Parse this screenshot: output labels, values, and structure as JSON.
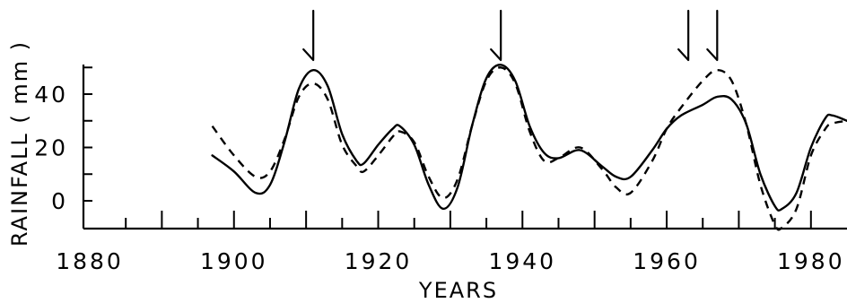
{
  "chart_data": {
    "type": "line",
    "xlabel": "YEARS",
    "ylabel": "RAINFALL ( mm )",
    "xlim": [
      1880,
      1985
    ],
    "ylim": [
      -10,
      52
    ],
    "x_ticks": [
      1880,
      1900,
      1920,
      1940,
      1960,
      1980
    ],
    "x_minor_step": 5,
    "y_ticks": [
      0,
      20,
      40
    ],
    "y_minor_step": 10,
    "grid": false,
    "legend": "none",
    "series": [
      {
        "style": "solid",
        "x": [
          1897,
          1900,
          1903,
          1905,
          1907,
          1909,
          1911,
          1913,
          1915,
          1917,
          1918,
          1920,
          1922,
          1923,
          1925,
          1927,
          1929,
          1931,
          1933,
          1935,
          1937,
          1939,
          1941,
          1943,
          1945,
          1948,
          1951,
          1953,
          1955,
          1958,
          1960,
          1962,
          1965,
          1967,
          1969,
          1971,
          1973,
          1975,
          1976,
          1978,
          1980,
          1982,
          1983,
          1985
        ],
        "y": [
          17,
          11,
          3,
          6,
          22,
          42,
          49,
          43,
          25,
          15,
          14,
          21,
          27,
          28,
          21,
          6,
          -3,
          5,
          28,
          46,
          51,
          45,
          28,
          18,
          16,
          19,
          13,
          9,
          9,
          19,
          27,
          32,
          36,
          39,
          38,
          29,
          10,
          -2,
          -3,
          3,
          20,
          31,
          32,
          30
        ]
      },
      {
        "style": "dashed",
        "x": [
          1897,
          1900,
          1903,
          1905,
          1907,
          1909,
          1911,
          1913,
          1915,
          1917,
          1918,
          1920,
          1922,
          1923,
          1925,
          1927,
          1929,
          1931,
          1933,
          1935,
          1937,
          1939,
          1941,
          1943,
          1945,
          1948,
          1951,
          1953,
          1955,
          1958,
          1960,
          1962,
          1965,
          1967,
          1969,
          1971,
          1973,
          1975,
          1976,
          1978,
          1980,
          1982,
          1983,
          1985
        ],
        "y": [
          28,
          17,
          9,
          11,
          23,
          39,
          44,
          38,
          21,
          13,
          11,
          17,
          24,
          26,
          22,
          9,
          1,
          8,
          28,
          45,
          50,
          44,
          26,
          15,
          16,
          20,
          12,
          5,
          3,
          15,
          27,
          35,
          45,
          49,
          45,
          29,
          6,
          -9,
          -10,
          -3,
          17,
          27,
          29,
          30
        ]
      }
    ],
    "annotations": [
      {
        "type": "arrow-down",
        "x": 1911
      },
      {
        "type": "arrow-down",
        "x": 1937
      },
      {
        "type": "arrow-down",
        "x": 1963
      },
      {
        "type": "arrow-down",
        "x": 1967
      }
    ]
  }
}
